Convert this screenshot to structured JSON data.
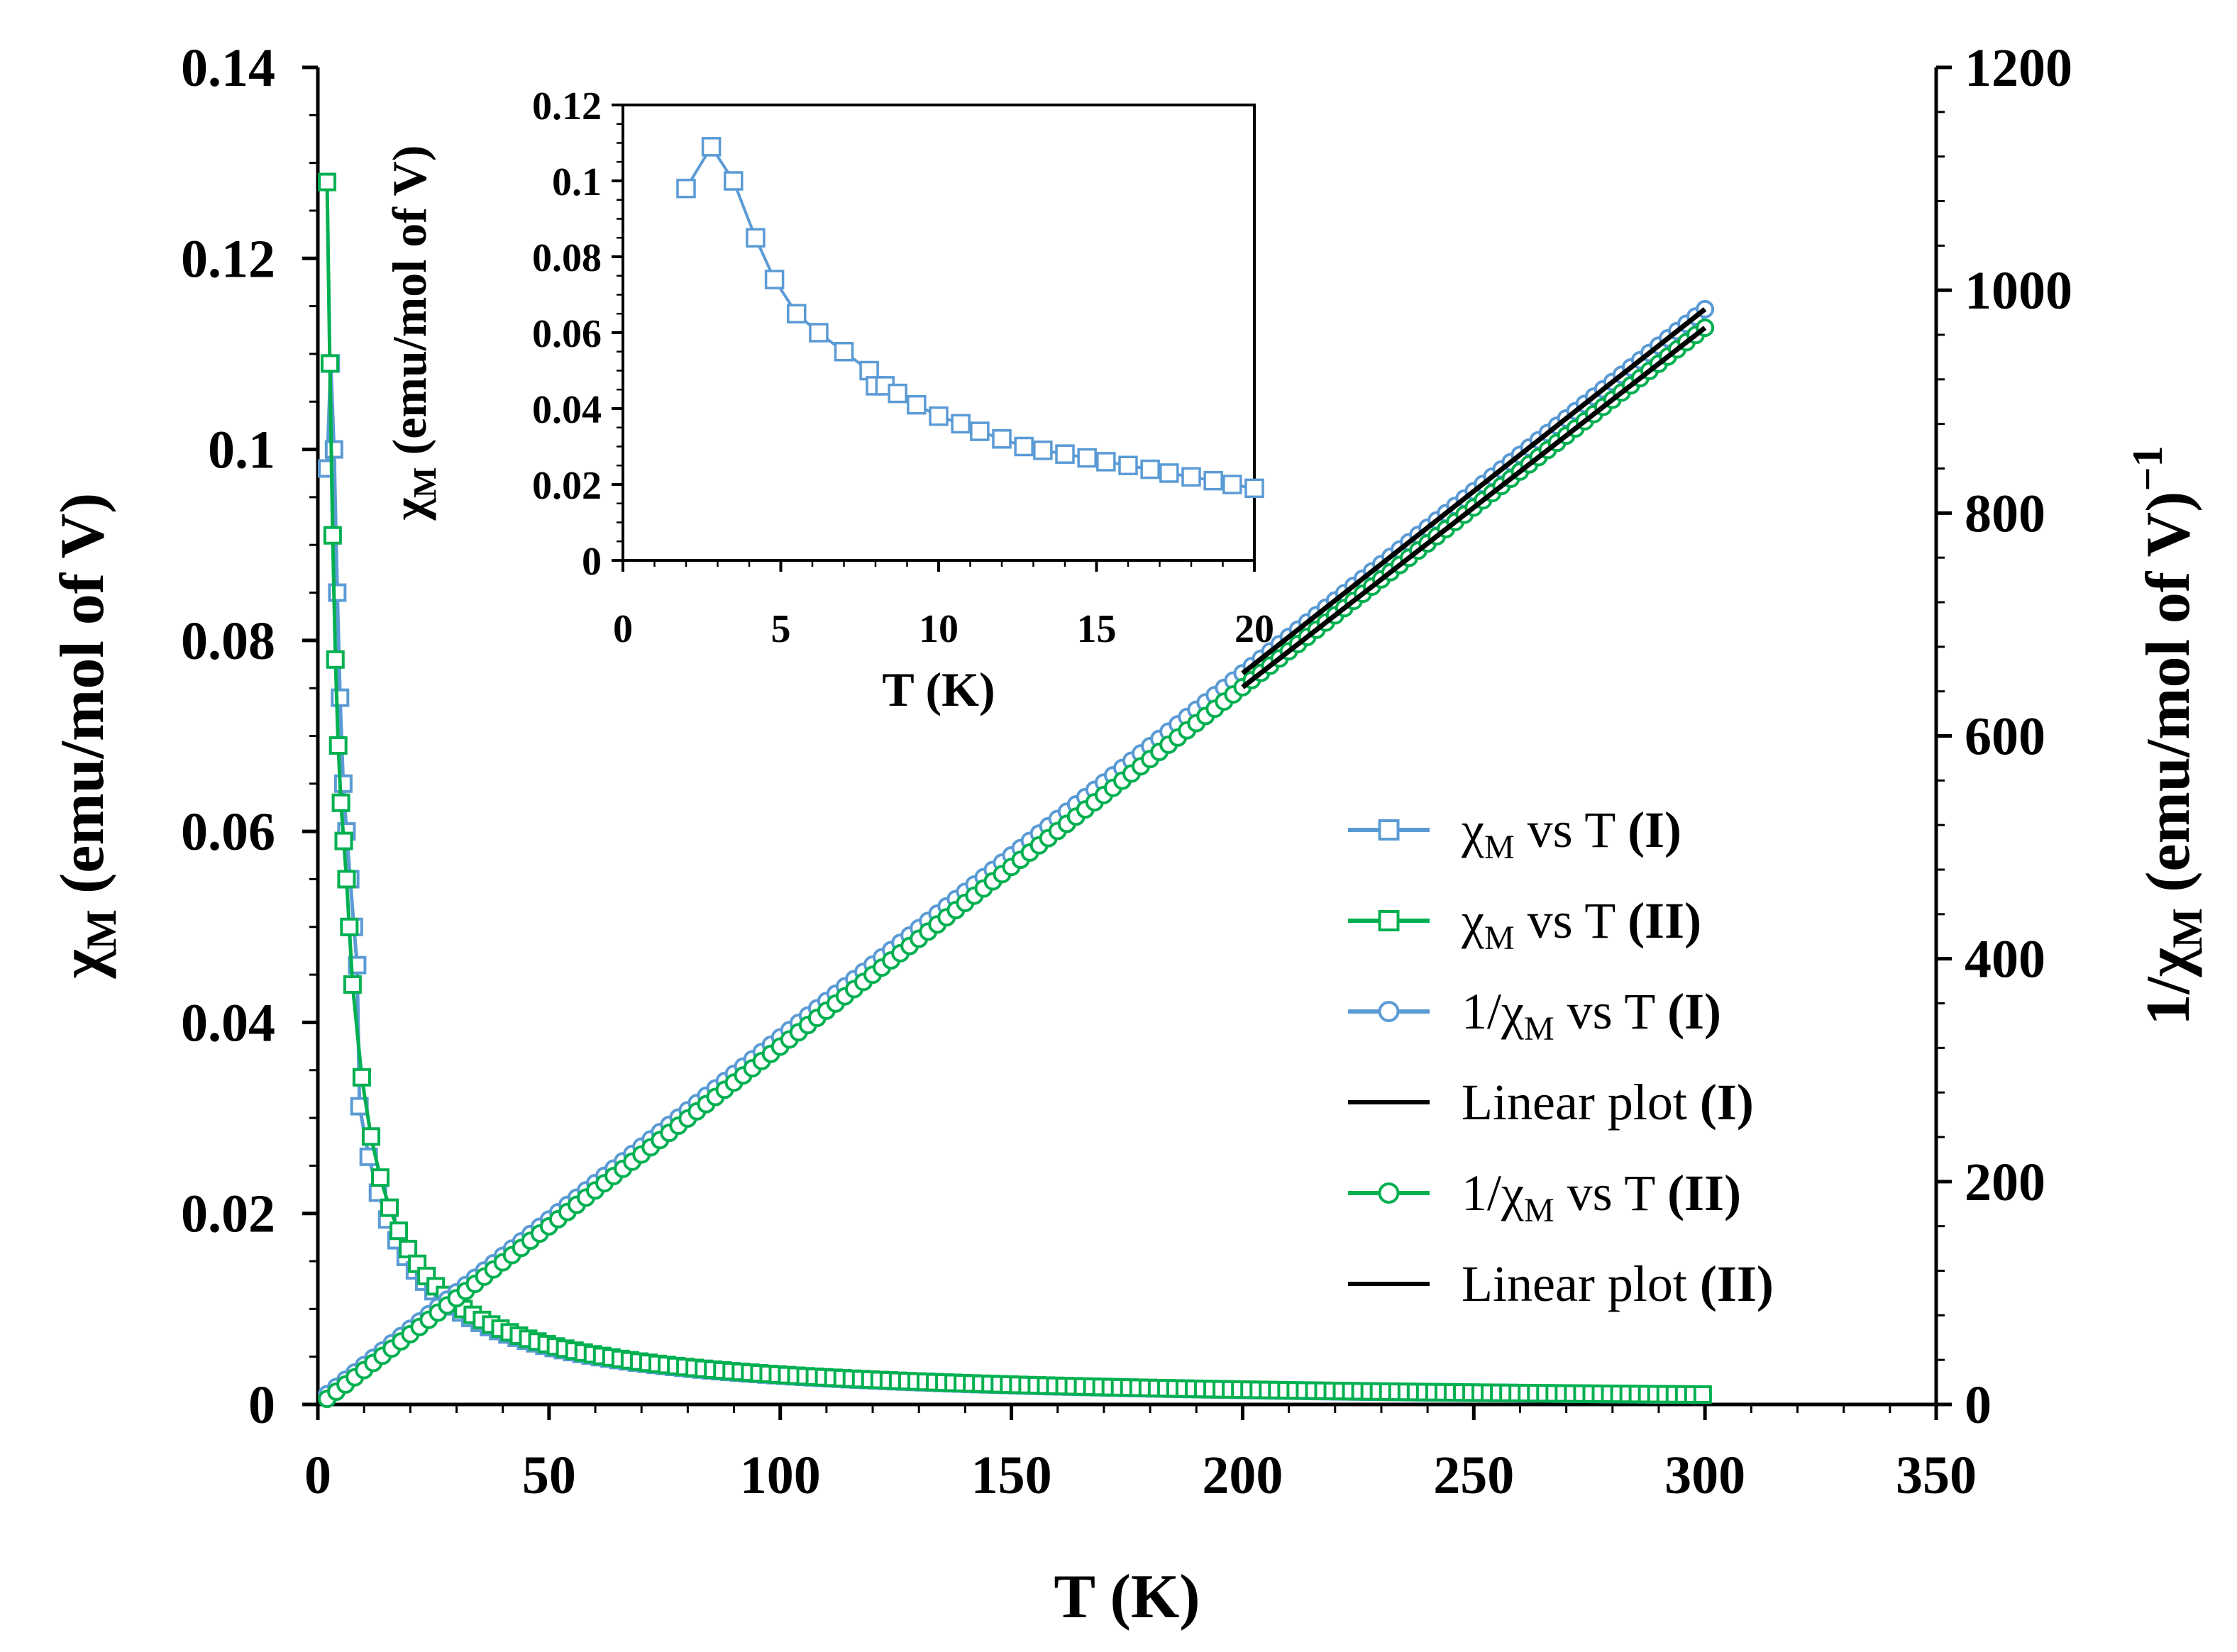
{
  "chart_data": {
    "type": "scatter",
    "main": {
      "xlabel": "T (K)",
      "ylabel_left": {
        "sym": "χ",
        "sub": "M",
        "rest": " (emu/mol of V)"
      },
      "ylabel_right": {
        "pre": "1/χ",
        "sub": "M",
        "rest": "  (emu/mol of V)",
        "sup": "−1"
      },
      "xlim": [
        0,
        350
      ],
      "ylim_left": [
        0,
        0.14
      ],
      "ylim_right": [
        0,
        1200
      ],
      "x_ticks": [
        "0",
        "50",
        "100",
        "150",
        "200",
        "250",
        "300",
        "350"
      ],
      "y_left_ticks": [
        "0",
        "0.02",
        "0.04",
        "0.06",
        "0.08",
        "0.1",
        "0.12",
        "0.14"
      ],
      "y_right_ticks": [
        "0",
        "200",
        "400",
        "600",
        "800",
        "1000",
        "1200"
      ]
    },
    "series": [
      {
        "name": "χM vs T (I)",
        "axis": "left",
        "color": "#5b9bd5",
        "marker": "square",
        "C": 0.306,
        "theta": -0.8,
        "low_T_points": [
          [
            2,
            0.098
          ],
          [
            2.8,
            0.109
          ],
          [
            3.5,
            0.1
          ],
          [
            4.2,
            0.085
          ],
          [
            4.8,
            0.074
          ],
          [
            5.5,
            0.065
          ],
          [
            6.2,
            0.06
          ],
          [
            7,
            0.055
          ],
          [
            7.8,
            0.05
          ],
          [
            8.5,
            0.046
          ]
        ],
        "T_start": 9,
        "T_end": 300,
        "T_step": 2
      },
      {
        "name": "χM vs T (II)",
        "axis": "left",
        "color": "#00b050",
        "marker": "square",
        "C": 0.31,
        "theta": 0.45,
        "low_T_points": [
          [
            2,
            0.128
          ],
          [
            2.6,
            0.109
          ],
          [
            3.2,
            0.091
          ],
          [
            3.8,
            0.078
          ],
          [
            4.4,
            0.069
          ],
          [
            5,
            0.063
          ],
          [
            5.6,
            0.059
          ],
          [
            6.2,
            0.055
          ],
          [
            6.8,
            0.05
          ]
        ],
        "T_start": 7.5,
        "T_end": 300,
        "T_step": 2
      },
      {
        "name": "1/χM vs T (I)",
        "axis": "right",
        "color": "#5b9bd5",
        "marker": "circle",
        "C": 0.306,
        "theta": -0.8,
        "T_start": 2,
        "T_end": 300,
        "T_step": 2
      },
      {
        "name": "Linear plot (I)",
        "axis": "right",
        "color": "#000000",
        "marker": "line",
        "C": 0.306,
        "theta": -0.8,
        "T_start": 200,
        "T_end": 300
      },
      {
        "name": "1/χM vs T (II)",
        "axis": "right",
        "color": "#00b050",
        "marker": "circle",
        "C": 0.31,
        "theta": 0.45,
        "T_start": 2,
        "T_end": 300,
        "T_step": 2
      },
      {
        "name": "Linear plot (II)",
        "axis": "right",
        "color": "#000000",
        "marker": "line",
        "C": 0.31,
        "theta": 0.45,
        "T_start": 200,
        "T_end": 300
      }
    ],
    "legend": [
      {
        "series": 0,
        "pre": "χ",
        "sub": "M",
        "mid": " vs T ",
        "tag": "(I)"
      },
      {
        "series": 1,
        "pre": "χ",
        "sub": "M",
        "mid": " vs T ",
        "tag": "(II)"
      },
      {
        "series": 2,
        "pre": "1/χ",
        "sub": "M",
        "mid": " vs T ",
        "tag": "(I)"
      },
      {
        "series": 3,
        "pre": "Linear plot ",
        "sub": "",
        "mid": "",
        "tag": "(I)"
      },
      {
        "series": 4,
        "pre": "1/χ",
        "sub": "M",
        "mid": " vs T ",
        "tag": "(II)"
      },
      {
        "series": 5,
        "pre": "Linear plot ",
        "sub": "",
        "mid": "",
        "tag": "(II)"
      }
    ],
    "legend_position": "right-center",
    "inset": {
      "xlabel": "T (K)",
      "ylabel": {
        "sym": "χ",
        "sub": "M",
        "rest": " (emu/mol of V)"
      },
      "xlim": [
        0,
        20
      ],
      "ylim": [
        0,
        0.12
      ],
      "x_ticks": [
        "0",
        "5",
        "10",
        "15",
        "20"
      ],
      "y_ticks": [
        "0",
        "0.02",
        "0.04",
        "0.06",
        "0.08",
        "0.1",
        "0.12"
      ],
      "color": "#5b9bd5",
      "points": [
        [
          2,
          0.098
        ],
        [
          2.8,
          0.109
        ],
        [
          3.5,
          0.1
        ],
        [
          4.2,
          0.085
        ],
        [
          4.8,
          0.074
        ],
        [
          5.5,
          0.065
        ],
        [
          6.2,
          0.06
        ],
        [
          7,
          0.055
        ],
        [
          7.8,
          0.05
        ],
        [
          8,
          0.046
        ],
        [
          8.3,
          0.046
        ],
        [
          8.7,
          0.044
        ],
        [
          9.3,
          0.041
        ],
        [
          10,
          0.038
        ],
        [
          10.7,
          0.036
        ],
        [
          11.3,
          0.034
        ],
        [
          12,
          0.032
        ],
        [
          12.7,
          0.03
        ],
        [
          13.3,
          0.029
        ],
        [
          14,
          0.028
        ],
        [
          14.7,
          0.027
        ],
        [
          15.3,
          0.026
        ],
        [
          16,
          0.025
        ],
        [
          16.7,
          0.024
        ],
        [
          17.3,
          0.023
        ],
        [
          18,
          0.022
        ],
        [
          18.7,
          0.021
        ],
        [
          19.3,
          0.02
        ],
        [
          20,
          0.019
        ]
      ]
    }
  }
}
